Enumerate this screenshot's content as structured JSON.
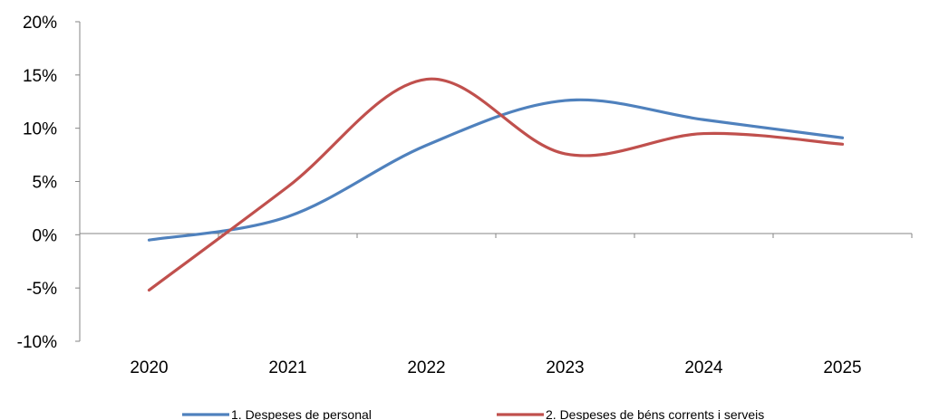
{
  "chart_data": {
    "type": "line",
    "categories": [
      "2020",
      "2021",
      "2022",
      "2023",
      "2024",
      "2025"
    ],
    "ylim": [
      -10,
      20
    ],
    "yticks": [
      -10,
      -5,
      0,
      5,
      10,
      15,
      20
    ],
    "ytick_labels": [
      "-10%",
      "-5%",
      "0%",
      "5%",
      "10%",
      "15%",
      "20%"
    ],
    "smooth": true,
    "grid": false,
    "legend": "bottom",
    "series": [
      {
        "name": "1. Despeses de personal",
        "color": "#4F81BD",
        "values": [
          -0.5,
          1.7,
          8.4,
          12.6,
          10.8,
          9.1
        ]
      },
      {
        "name": "2. Despeses de béns corrents i serveis",
        "color": "#C0504D",
        "values": [
          -5.2,
          4.5,
          14.6,
          7.6,
          9.5,
          8.5
        ]
      }
    ]
  }
}
